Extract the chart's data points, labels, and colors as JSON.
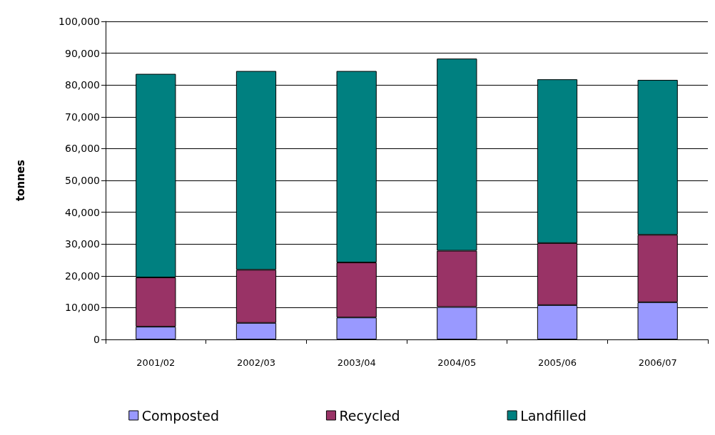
{
  "chart_data": {
    "type": "bar",
    "stacked": true,
    "ylabel": "tonnes",
    "categories": [
      "2001/02",
      "2002/03",
      "2003/04",
      "2004/05",
      "2005/06",
      "2006/07"
    ],
    "series": [
      {
        "name": "Composted",
        "color": "#9999ff",
        "values": [
          4000,
          5200,
          6900,
          10200,
          10800,
          11700
        ]
      },
      {
        "name": "Recycled",
        "color": "#993366",
        "values": [
          15500,
          16700,
          17300,
          17700,
          19500,
          21200
        ]
      },
      {
        "name": "Landfilled",
        "color": "#008080",
        "values": [
          64000,
          62500,
          60200,
          60400,
          51500,
          48700
        ]
      }
    ],
    "ylim": [
      0,
      100000
    ],
    "yticks": [
      0,
      {
        "value": 10000,
        "label": "10,000"
      },
      {
        "value": 20000,
        "label": "20,000"
      },
      {
        "value": 30000,
        "label": "30,000"
      },
      {
        "value": 40000,
        "label": "40,000"
      },
      {
        "value": 50000,
        "label": "50,000"
      },
      {
        "value": 60000,
        "label": "60,000"
      },
      {
        "value": 70000,
        "label": "70,000"
      },
      {
        "value": 80000,
        "label": "80,000"
      },
      {
        "value": 90000,
        "label": "90,000"
      },
      {
        "value": 100000,
        "label": "100,000"
      }
    ],
    "grid": "y",
    "legend": "bottom"
  }
}
